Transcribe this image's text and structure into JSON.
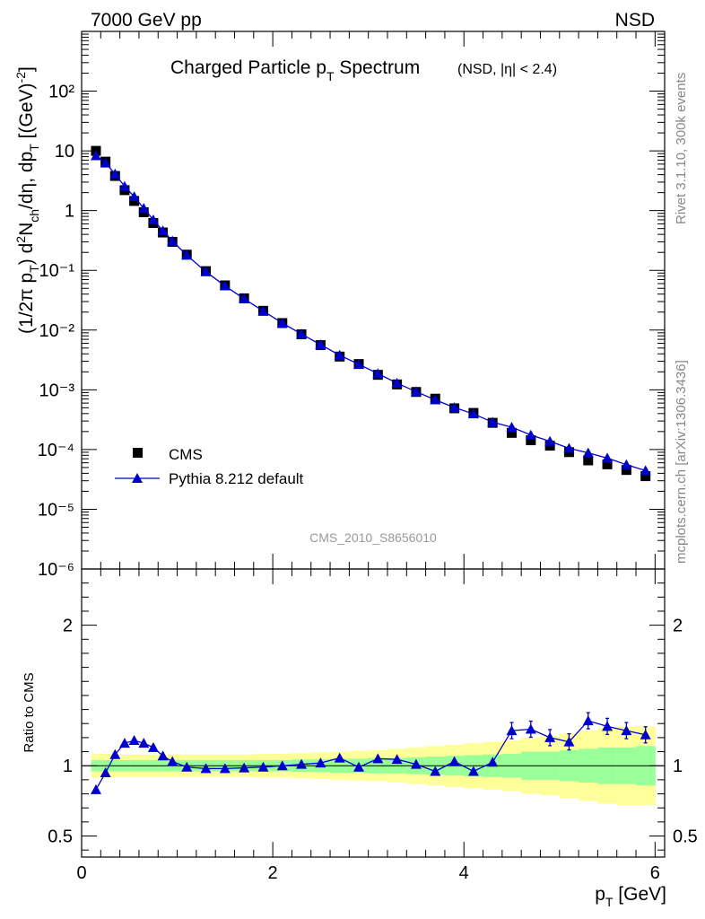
{
  "header": {
    "energy_label": "7000 GeV pp",
    "process_label": "NSD"
  },
  "side_labels": {
    "rivet": "Rivet 3.1.10,  300k events",
    "mcplots": "mcplots.cern.ch [arXiv:1306.3436]"
  },
  "colors": {
    "data": "#000000",
    "mc": "#0000cc",
    "band_inner": "#99ff99",
    "band_outer": "#ffff99"
  },
  "chart_data": [
    {
      "type": "scatter",
      "title_main": "Charged Particle p",
      "title_main_sub": "T",
      "title_main_tail": " Spectrum",
      "title_extra": "(NSD, |η| < 2.4)",
      "analysis_id": "CMS_2010_S8656010",
      "ylabel": "(1/2π p_T) d²N_ch/dη, dp_T [(GeV)⁻²]",
      "yscale": "log",
      "ylim": [
        1e-06,
        1000
      ],
      "xlim": [
        0,
        6.1
      ],
      "legend_placement": "lower-left",
      "y_tick_labels": [
        "10^2",
        "10",
        "1",
        "10^-1",
        "10^-2",
        "10^-3",
        "10^-4",
        "10^-5",
        "10^-6"
      ],
      "legend": {
        "data": "CMS",
        "mc": "Pythia 8.212 default"
      },
      "x": [
        0.15,
        0.25,
        0.35,
        0.45,
        0.55,
        0.65,
        0.75,
        0.85,
        0.95,
        1.1,
        1.3,
        1.5,
        1.7,
        1.9,
        2.1,
        2.3,
        2.5,
        2.7,
        2.9,
        3.1,
        3.3,
        3.5,
        3.7,
        3.9,
        4.1,
        4.3,
        4.5,
        4.7,
        4.9,
        5.1,
        5.3,
        5.5,
        5.7,
        5.9
      ],
      "data_values": [
        10.0,
        6.6,
        3.8,
        2.2,
        1.45,
        0.94,
        0.62,
        0.43,
        0.3,
        0.183,
        0.097,
        0.056,
        0.034,
        0.021,
        0.0131,
        0.0085,
        0.0056,
        0.0036,
        0.0027,
        0.00178,
        0.00123,
        0.00092,
        0.00071,
        0.00049,
        0.00041,
        0.00028,
        0.00019,
        0.000143,
        0.000116,
        9.05e-05,
        6.58e-05,
        5.65e-05,
        4.55e-05,
        3.58e-05
      ],
      "mc_values": [
        8.3,
        6.27,
        4.1,
        2.55,
        1.71,
        1.09,
        0.7,
        0.46,
        0.309,
        0.18,
        0.095,
        0.0549,
        0.0334,
        0.0208,
        0.0131,
        0.0086,
        0.0057,
        0.0038,
        0.00267,
        0.00187,
        0.00129,
        0.00093,
        0.00068,
        0.000504,
        0.000395,
        0.000287,
        0.000237,
        0.000175,
        0.000137,
        0.000105,
        8.78e-05,
        7.2e-05,
        5.57e-05,
        4.43e-05
      ]
    },
    {
      "type": "line",
      "ylabel": "Ratio to CMS",
      "xlabel": "p_T [GeV]",
      "ylim": [
        0.35,
        2.4
      ],
      "xlim": [
        0,
        6.1
      ],
      "x_ticks": [
        0,
        2,
        4,
        6
      ],
      "y_ticks": [
        0.5,
        1,
        2
      ],
      "x": [
        0.15,
        0.25,
        0.35,
        0.45,
        0.55,
        0.65,
        0.75,
        0.85,
        0.95,
        1.1,
        1.3,
        1.5,
        1.7,
        1.9,
        2.1,
        2.3,
        2.5,
        2.7,
        2.9,
        3.1,
        3.3,
        3.5,
        3.7,
        3.9,
        4.1,
        4.3,
        4.5,
        4.7,
        4.9,
        5.1,
        5.3,
        5.5,
        5.7,
        5.9
      ],
      "ratio": [
        0.83,
        0.95,
        1.08,
        1.16,
        1.18,
        1.16,
        1.13,
        1.07,
        1.03,
        0.99,
        0.98,
        0.98,
        0.985,
        0.99,
        1.0,
        1.01,
        1.02,
        1.055,
        0.99,
        1.05,
        1.045,
        1.01,
        0.96,
        1.03,
        0.96,
        1.025,
        1.25,
        1.26,
        1.2,
        1.17,
        1.32,
        1.28,
        1.25,
        1.22
      ],
      "band_x": [
        0.1,
        0.2,
        0.3,
        0.4,
        0.5,
        0.6,
        0.7,
        0.8,
        0.9,
        1.0,
        1.2,
        1.4,
        1.6,
        1.8,
        2.0,
        2.2,
        2.4,
        2.6,
        2.8,
        3.0,
        3.2,
        3.4,
        3.6,
        3.8,
        4.0,
        4.2,
        4.4,
        4.6,
        4.8,
        5.0,
        5.2,
        5.4,
        5.6,
        5.8,
        6.0
      ],
      "band_inner": [
        0.04,
        0.04,
        0.04,
        0.04,
        0.04,
        0.04,
        0.04,
        0.04,
        0.04,
        0.04,
        0.04,
        0.04,
        0.04,
        0.04,
        0.04,
        0.045,
        0.045,
        0.05,
        0.05,
        0.055,
        0.055,
        0.06,
        0.065,
        0.07,
        0.075,
        0.08,
        0.085,
        0.1,
        0.1,
        0.11,
        0.12,
        0.13,
        0.13,
        0.14
      ],
      "band_outer": [
        0.085,
        0.085,
        0.08,
        0.08,
        0.08,
        0.08,
        0.08,
        0.08,
        0.08,
        0.08,
        0.08,
        0.08,
        0.08,
        0.085,
        0.085,
        0.09,
        0.095,
        0.1,
        0.105,
        0.11,
        0.12,
        0.13,
        0.14,
        0.15,
        0.16,
        0.17,
        0.18,
        0.2,
        0.21,
        0.23,
        0.25,
        0.27,
        0.28,
        0.28
      ]
    }
  ]
}
